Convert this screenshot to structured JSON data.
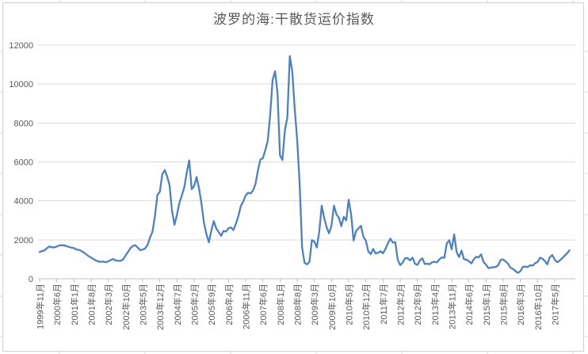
{
  "chart": {
    "title": "波罗的海:干散货运价指数"
  },
  "chart_data": {
    "type": "line",
    "title": "波罗的海:干散货运价指数",
    "start_month": "1999年11月",
    "x_label_interval_months": 7,
    "x_tick_labels": [
      "1999年11月",
      "2000年6月",
      "2001年1月",
      "2001年8月",
      "2002年3月",
      "2002年10月",
      "2003年5月",
      "2003年12月",
      "2004年7月",
      "2005年2月",
      "2005年9月",
      "2006年4月",
      "2006年11月",
      "2007年6月",
      "2008年1月",
      "2008年8月",
      "2009年3月",
      "2009年10月",
      "2010年5月",
      "2010年12月",
      "2011年7月",
      "2012年2月",
      "2012年9月",
      "2013年4月",
      "2013年11月",
      "2014年6月",
      "2015年1月",
      "2015年8月",
      "2016年3月",
      "2016年10月",
      "2017年5月"
    ],
    "y_tick_labels": [
      "0",
      "2000",
      "4000",
      "6000",
      "8000",
      "10000",
      "12000"
    ],
    "ylim": [
      0,
      12000
    ],
    "ytick_step": 2000,
    "grid": "horizontal",
    "legend": "none",
    "line_color": "#4f81bd",
    "axis_color": "#bfbfbf",
    "grid_color": "#d9d9d9",
    "text_color": "#595959",
    "values": [
      1380,
      1420,
      1461,
      1576,
      1663,
      1610,
      1621,
      1653,
      1712,
      1717,
      1722,
      1671,
      1634,
      1599,
      1574,
      1502,
      1487,
      1422,
      1354,
      1256,
      1160,
      1089,
      1006,
      930,
      886,
      876,
      882,
      850,
      893,
      966,
      1016,
      940,
      924,
      920,
      984,
      1184,
      1374,
      1568,
      1685,
      1727,
      1598,
      1471,
      1500,
      1555,
      1737,
      2117,
      2411,
      3210,
      4301,
      4471,
      5371,
      5579,
      5247,
      4797,
      3469,
      2777,
      3283,
      3906,
      4283,
      4702,
      5457,
      6080,
      4601,
      4764,
      5227,
      4633,
      3842,
      2869,
      2289,
      1877,
      2474,
      2960,
      2577,
      2400,
      2208,
      2456,
      2426,
      2596,
      2636,
      2501,
      2818,
      3201,
      3732,
      3963,
      4279,
      4421,
      4382,
      4530,
      4870,
      5570,
      6130,
      6188,
      6605,
      7089,
      8463,
      10218,
      10656,
      9535,
      6340,
      6102,
      7625,
      8290,
      11440,
      10668,
      8730,
      7147,
      4894,
      1615,
      820,
      740,
      871,
      1986,
      1913,
      1607,
      2432,
      3757,
      3138,
      2657,
      2331,
      2736,
      3759,
      3315,
      3140,
      2702,
      3180,
      3003,
      4060,
      3297,
      1967,
      2450,
      2595,
      2719,
      2155,
      1955,
      1400,
      1269,
      1532,
      1298,
      1338,
      1413,
      1311,
      1534,
      1824,
      2062,
      1857,
      1885,
      973,
      702,
      824,
      1056,
      1060,
      945,
      1092,
      771,
      711,
      940,
      1054,
      760,
      772,
      748,
      847,
      875,
      842,
      997,
      1102,
      1072,
      1818,
      1980,
      1512,
      2280,
      1370,
      1117,
      1443,
      1000,
      981,
      897,
      791,
      1000,
      1131,
      1096,
      1256,
      862,
      727,
      539,
      576,
      591,
      611,
      699,
      975,
      994,
      889,
      763,
      562,
      510,
      391,
      307,
      389,
      617,
      618,
      608,
      696,
      675,
      800,
      857,
      1080,
      1031,
      908,
      741,
      1110,
      1221,
      980,
      849,
      928,
      1050,
      1180,
      1300,
      1460
    ]
  }
}
